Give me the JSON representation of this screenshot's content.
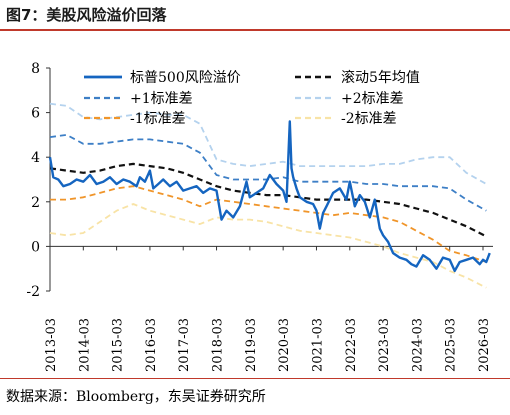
{
  "figure": {
    "title": "图7：美股风险溢价回落",
    "source": "数据来源：Bloomberg，东吴证券研究所"
  },
  "chart_data": {
    "type": "line",
    "title": "",
    "xlabel": "",
    "ylabel": "",
    "x_ticks": [
      "2013-03",
      "2014-03",
      "2015-03",
      "2016-03",
      "2017-03",
      "2018-03",
      "2019-03",
      "2020-03",
      "2021-03",
      "2022-03",
      "2023-03",
      "2024-03",
      "2025-03",
      "2026-03"
    ],
    "xlim": [
      2013.0,
      2026.3
    ],
    "ylim": [
      -2,
      8
    ],
    "y_ticks": [
      "-2",
      "0",
      "2",
      "4",
      "6",
      "8"
    ],
    "grid": false,
    "legend_position": "top",
    "series": [
      {
        "name": "标普500风险溢价",
        "style": "solid",
        "color": "#1565c0",
        "width": 2.4,
        "x": [
          2013.0,
          2013.1,
          2013.25,
          2013.4,
          2013.6,
          2013.8,
          2014.0,
          2014.2,
          2014.4,
          2014.6,
          2014.8,
          2015.0,
          2015.2,
          2015.4,
          2015.6,
          2015.7,
          2015.85,
          2016.0,
          2016.1,
          2016.25,
          2016.4,
          2016.6,
          2016.8,
          2017.0,
          2017.2,
          2017.4,
          2017.6,
          2017.8,
          2018.0,
          2018.15,
          2018.3,
          2018.5,
          2018.7,
          2018.9,
          2019.0,
          2019.2,
          2019.4,
          2019.6,
          2019.8,
          2020.0,
          2020.1,
          2020.2,
          2020.25,
          2020.3,
          2020.4,
          2020.5,
          2020.7,
          2020.9,
          2021.0,
          2021.1,
          2021.2,
          2021.3,
          2021.5,
          2021.7,
          2021.9,
          2022.0,
          2022.15,
          2022.3,
          2022.45,
          2022.6,
          2022.75,
          2022.9,
          2023.0,
          2023.15,
          2023.3,
          2023.5,
          2023.7,
          2023.85,
          2024.0,
          2024.2,
          2024.4,
          2024.6,
          2024.8,
          2025.0,
          2025.15,
          2025.3,
          2025.5,
          2025.7,
          2025.9,
          2026.0,
          2026.1,
          2026.2
        ],
        "y": [
          4.0,
          3.1,
          3.0,
          2.7,
          2.8,
          3.0,
          2.9,
          3.2,
          2.8,
          2.9,
          3.1,
          2.8,
          3.0,
          2.9,
          2.7,
          3.1,
          2.9,
          3.4,
          2.6,
          2.8,
          3.0,
          2.7,
          2.9,
          2.5,
          2.6,
          2.7,
          2.4,
          2.6,
          2.5,
          1.2,
          1.6,
          1.3,
          1.8,
          2.9,
          2.2,
          2.4,
          2.6,
          3.2,
          2.8,
          2.5,
          2.0,
          5.6,
          3.5,
          3.1,
          2.6,
          2.2,
          2.0,
          1.9,
          1.6,
          0.8,
          1.5,
          1.8,
          2.4,
          2.6,
          2.1,
          2.9,
          1.8,
          2.3,
          2.0,
          1.3,
          2.1,
          0.8,
          0.5,
          0.2,
          -0.3,
          -0.5,
          -0.6,
          -0.8,
          -0.9,
          -0.4,
          -0.6,
          -1.0,
          -0.5,
          -0.6,
          -1.1,
          -0.7,
          -0.6,
          -0.5,
          -0.8,
          -0.6,
          -0.7,
          -0.3
        ]
      },
      {
        "name": "滚动5年均值",
        "style": "dashed",
        "color": "#111111",
        "width": 2.2,
        "x": [
          2013.0,
          2013.5,
          2014.0,
          2014.5,
          2015.0,
          2015.5,
          2016.0,
          2016.5,
          2017.0,
          2017.5,
          2018.0,
          2018.5,
          2019.0,
          2019.5,
          2020.0,
          2020.5,
          2021.0,
          2021.5,
          2022.0,
          2022.5,
          2023.0,
          2023.5,
          2024.0,
          2024.5,
          2025.0,
          2025.5,
          2026.1
        ],
        "y": [
          3.5,
          3.4,
          3.3,
          3.4,
          3.6,
          3.7,
          3.6,
          3.5,
          3.3,
          3.0,
          2.7,
          2.5,
          2.4,
          2.3,
          2.3,
          2.2,
          2.1,
          2.1,
          2.1,
          2.1,
          2.0,
          1.9,
          1.7,
          1.5,
          1.2,
          0.9,
          0.45
        ]
      },
      {
        "name": "+1标准差",
        "style": "dashed",
        "color": "#3d7fc6",
        "width": 1.8,
        "x": [
          2013.0,
          2013.5,
          2014.0,
          2014.5,
          2015.0,
          2015.5,
          2016.0,
          2016.5,
          2017.0,
          2017.5,
          2018.0,
          2018.5,
          2019.0,
          2019.5,
          2020.0,
          2020.5,
          2021.0,
          2021.5,
          2022.0,
          2022.5,
          2023.0,
          2023.5,
          2024.0,
          2024.5,
          2025.0,
          2025.5,
          2026.1
        ],
        "y": [
          4.9,
          5.0,
          4.6,
          4.6,
          4.7,
          4.8,
          4.8,
          4.7,
          4.6,
          4.2,
          3.2,
          3.0,
          3.0,
          3.0,
          3.1,
          2.9,
          2.9,
          2.9,
          2.9,
          2.8,
          2.8,
          2.7,
          2.7,
          2.7,
          2.6,
          2.1,
          1.6
        ]
      },
      {
        "name": "+2标准差",
        "style": "dashed",
        "color": "#b4d2ee",
        "width": 1.8,
        "x": [
          2013.0,
          2013.5,
          2014.0,
          2014.5,
          2015.0,
          2015.5,
          2016.0,
          2016.5,
          2017.0,
          2017.5,
          2018.0,
          2018.5,
          2019.0,
          2019.5,
          2020.0,
          2020.5,
          2021.0,
          2021.5,
          2022.0,
          2022.5,
          2023.0,
          2023.5,
          2024.0,
          2024.5,
          2025.0,
          2025.5,
          2026.1
        ],
        "y": [
          6.4,
          6.3,
          5.8,
          5.7,
          5.8,
          5.9,
          6.0,
          5.9,
          5.9,
          5.5,
          3.9,
          3.7,
          3.6,
          3.7,
          3.8,
          3.6,
          3.6,
          3.6,
          3.6,
          3.6,
          3.7,
          3.7,
          3.9,
          4.0,
          4.0,
          3.3,
          2.8
        ]
      },
      {
        "name": "-1标准差",
        "style": "dashed",
        "color": "#f0952a",
        "width": 1.8,
        "x": [
          2013.0,
          2013.5,
          2014.0,
          2014.5,
          2015.0,
          2015.5,
          2016.0,
          2016.5,
          2017.0,
          2017.5,
          2018.0,
          2018.5,
          2019.0,
          2019.5,
          2020.0,
          2020.5,
          2021.0,
          2021.5,
          2022.0,
          2022.5,
          2023.0,
          2023.5,
          2024.0,
          2024.5,
          2025.0,
          2025.5,
          2026.1
        ],
        "y": [
          2.1,
          2.1,
          2.2,
          2.4,
          2.6,
          2.7,
          2.5,
          2.3,
          2.1,
          1.8,
          2.1,
          2.0,
          1.9,
          1.8,
          1.7,
          1.6,
          1.5,
          1.4,
          1.5,
          1.4,
          1.3,
          1.1,
          0.7,
          0.3,
          -0.2,
          -0.4,
          -0.7
        ]
      },
      {
        "name": "-2标准差",
        "style": "dashed",
        "color": "#f8e3a6",
        "width": 1.8,
        "x": [
          2013.0,
          2013.5,
          2014.0,
          2014.5,
          2015.0,
          2015.5,
          2016.0,
          2016.5,
          2017.0,
          2017.5,
          2018.0,
          2018.5,
          2019.0,
          2019.5,
          2020.0,
          2020.5,
          2021.0,
          2021.5,
          2022.0,
          2022.5,
          2023.0,
          2023.5,
          2024.0,
          2024.5,
          2025.0,
          2025.5,
          2026.1
        ],
        "y": [
          0.6,
          0.5,
          0.6,
          1.1,
          1.6,
          1.9,
          1.6,
          1.4,
          1.2,
          1.0,
          1.3,
          1.2,
          1.2,
          1.1,
          0.9,
          0.7,
          0.6,
          0.5,
          0.4,
          0.2,
          0.0,
          -0.3,
          -0.5,
          -0.7,
          -1.1,
          -1.4,
          -1.85
        ]
      }
    ]
  }
}
